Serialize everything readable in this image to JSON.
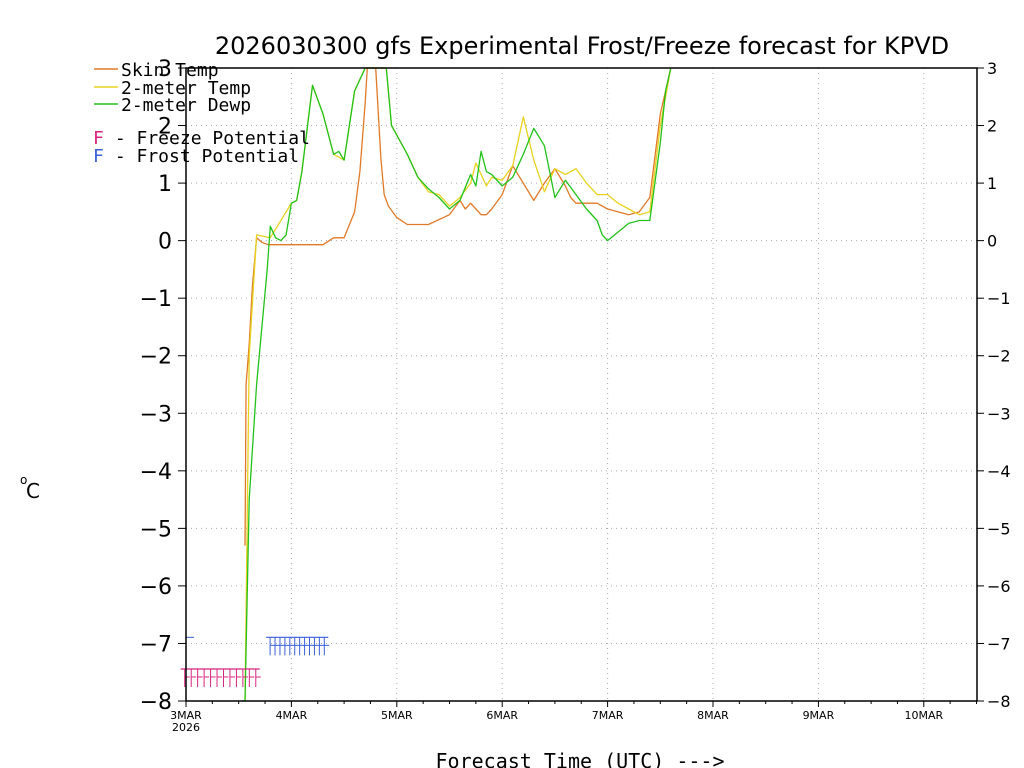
{
  "chart_data": {
    "type": "line",
    "title": "2026030300 gfs Experimental Frost/Freeze forecast for KPVD",
    "ylabel_sup": "o",
    "ylabel": "C",
    "xlabel": "Forecast Time (UTC) --->",
    "ylim": [
      -8,
      3
    ],
    "xlim": [
      0,
      7.5
    ],
    "grid": true,
    "y_ticks": [
      "−8",
      "−7",
      "−6",
      "−5",
      "−4",
      "−3",
      "−2",
      "−1",
      "0",
      "1",
      "2",
      "3"
    ],
    "x_ticks": [
      {
        "day": 0,
        "label": "3MAR"
      },
      {
        "day": 1,
        "label": "4MAR"
      },
      {
        "day": 2,
        "label": "5MAR"
      },
      {
        "day": 3,
        "label": "6MAR"
      },
      {
        "day": 4,
        "label": "7MAR"
      },
      {
        "day": 5,
        "label": "8MAR"
      },
      {
        "day": 6,
        "label": "9MAR"
      },
      {
        "day": 7,
        "label": "10MAR"
      }
    ],
    "x_year": "2026",
    "colors": {
      "skin": "#e07a28",
      "temp": "#e8d21e",
      "dewp": "#22c21a",
      "freeze": "#d8247e",
      "frost": "#3a5fd8"
    },
    "legend": {
      "skin": "Skin Temp",
      "temp": "2-meter Temp",
      "dewp": "2-meter Dewp",
      "freeze_marker": "F",
      "freeze": " - Freeze Potential",
      "frost_marker": "F",
      "frost": " - Frost Potential"
    },
    "series": [
      {
        "name": "Skin Temp",
        "key": "skin",
        "x": [
          0.56,
          0.57,
          0.6,
          0.63,
          0.67,
          0.72,
          0.78,
          0.9,
          1.0,
          1.2,
          1.3,
          1.4,
          1.5,
          1.6,
          1.65,
          1.7,
          1.72,
          1.75,
          1.8,
          1.85,
          1.88,
          1.92,
          2.0,
          2.1,
          2.3,
          2.5,
          2.6,
          2.65,
          2.7,
          2.75,
          2.8,
          2.85,
          2.9,
          3.0,
          3.1,
          3.3,
          3.4,
          3.5,
          3.6,
          3.65,
          3.7,
          3.8,
          3.9,
          4.0,
          4.1,
          4.2,
          4.3,
          4.4,
          4.5,
          4.55,
          4.6
        ],
        "y": [
          -5.3,
          -2.5,
          -1.8,
          -0.8,
          0.05,
          -0.03,
          -0.07,
          -0.07,
          -0.07,
          -0.07,
          -0.07,
          0.05,
          0.05,
          0.5,
          1.2,
          2.4,
          3.0,
          3.0,
          3.0,
          1.4,
          0.8,
          0.6,
          0.4,
          0.28,
          0.28,
          0.45,
          0.7,
          0.55,
          0.65,
          0.55,
          0.45,
          0.45,
          0.55,
          0.8,
          1.3,
          0.7,
          1.0,
          1.25,
          0.95,
          0.75,
          0.65,
          0.65,
          0.65,
          0.55,
          0.5,
          0.45,
          0.5,
          0.75,
          2.2,
          2.6,
          3.0
        ]
      },
      {
        "name": "2-meter Temp",
        "key": "temp",
        "x": [
          0.56,
          0.6,
          0.67,
          0.8,
          1.0,
          1.05,
          1.1,
          1.2,
          1.3,
          1.4,
          1.5,
          1.6,
          1.7,
          1.75,
          1.9,
          1.95,
          2.1,
          2.2,
          2.3,
          2.4,
          2.5,
          2.6,
          2.7,
          2.75,
          2.85,
          2.9,
          3.0,
          3.1,
          3.2,
          3.3,
          3.4,
          3.5,
          3.6,
          3.7,
          3.8,
          3.9,
          4.0,
          4.1,
          4.2,
          4.3,
          4.4,
          4.5,
          4.55,
          4.6
        ],
        "y": [
          -8.0,
          -2.0,
          0.1,
          0.05,
          0.65,
          0.7,
          1.2,
          2.7,
          2.2,
          1.5,
          1.4,
          2.6,
          3.0,
          3.0,
          3.0,
          2.0,
          1.5,
          1.1,
          0.85,
          0.8,
          0.6,
          0.75,
          1.0,
          1.35,
          0.95,
          1.1,
          1.05,
          1.3,
          2.15,
          1.4,
          0.85,
          1.25,
          1.15,
          1.25,
          1.0,
          0.8,
          0.8,
          0.65,
          0.55,
          0.45,
          0.5,
          2.0,
          2.5,
          3.0
        ]
      },
      {
        "name": "2-meter Dewp",
        "key": "dewp",
        "x": [
          0.53,
          0.56,
          0.6,
          0.67,
          0.77,
          0.8,
          0.85,
          0.9,
          0.95,
          1.0,
          1.05,
          1.1,
          1.2,
          1.3,
          1.4,
          1.45,
          1.5,
          1.6,
          1.7,
          1.75,
          1.9,
          1.95,
          2.1,
          2.2,
          2.3,
          2.4,
          2.5,
          2.6,
          2.7,
          2.75,
          2.8,
          2.85,
          2.9,
          3.0,
          3.1,
          3.2,
          3.3,
          3.4,
          3.5,
          3.6,
          3.7,
          3.8,
          3.9,
          3.95,
          4.0,
          4.1,
          4.2,
          4.3,
          4.4,
          4.5,
          4.55,
          4.6
        ],
        "y": [
          -8.0,
          -8.0,
          -4.5,
          -2.5,
          -0.5,
          0.25,
          0.05,
          0.0,
          0.1,
          0.65,
          0.7,
          1.2,
          2.7,
          2.2,
          1.5,
          1.55,
          1.4,
          2.6,
          3.0,
          3.0,
          3.0,
          2.0,
          1.5,
          1.1,
          0.9,
          0.75,
          0.55,
          0.7,
          1.15,
          0.95,
          1.55,
          1.2,
          1.15,
          0.95,
          1.1,
          1.5,
          1.95,
          1.65,
          0.75,
          1.05,
          0.8,
          0.55,
          0.35,
          0.1,
          0.0,
          0.15,
          0.3,
          0.35,
          0.35,
          1.7,
          2.6,
          3.0
        ]
      }
    ],
    "freeze_markers": {
      "row_y": -7.6,
      "count": 12,
      "x_start": -0.05,
      "x_end": 0.7
    },
    "frost_markers": {
      "row_y": -7.05,
      "count": 12,
      "x_start": 0.76,
      "x_end": 1.35
    },
    "frost_stray": {
      "x": 0.0,
      "y": -7.05
    }
  }
}
